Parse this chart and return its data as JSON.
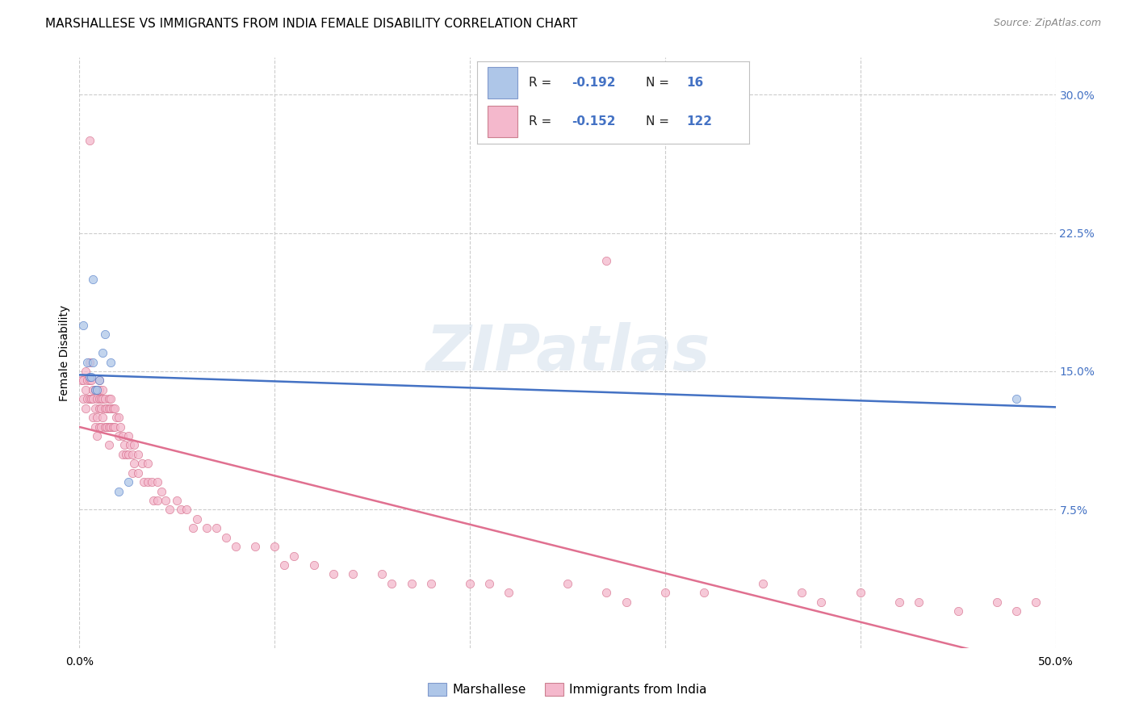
{
  "title": "MARSHALLESE VS IMMIGRANTS FROM INDIA FEMALE DISABILITY CORRELATION CHART",
  "source": "Source: ZipAtlas.com",
  "ylabel": "Female Disability",
  "xlim": [
    0.0,
    0.5
  ],
  "ylim": [
    0.0,
    0.32
  ],
  "yticks": [
    0.075,
    0.15,
    0.225,
    0.3
  ],
  "ytick_labels": [
    "7.5%",
    "15.0%",
    "22.5%",
    "30.0%"
  ],
  "xticks": [
    0.0,
    0.1,
    0.2,
    0.3,
    0.4,
    0.5
  ],
  "xtick_labels": [
    "0.0%",
    "",
    "",
    "",
    "",
    "50.0%"
  ],
  "marshallese_color": "#aec6e8",
  "india_color": "#f4b8cc",
  "line_marshallese_color": "#4472c4",
  "line_india_color": "#e07090",
  "background_color": "#ffffff",
  "grid_color": "#cccccc",
  "marshallese_x": [
    0.002,
    0.004,
    0.005,
    0.006,
    0.007,
    0.007,
    0.008,
    0.009,
    0.01,
    0.012,
    0.013,
    0.016,
    0.02,
    0.025,
    0.48
  ],
  "marshallese_y": [
    0.175,
    0.155,
    0.147,
    0.147,
    0.2,
    0.155,
    0.14,
    0.14,
    0.145,
    0.16,
    0.17,
    0.155,
    0.085,
    0.09,
    0.135
  ],
  "india_x": [
    0.001,
    0.002,
    0.002,
    0.003,
    0.003,
    0.003,
    0.004,
    0.004,
    0.005,
    0.005,
    0.005,
    0.006,
    0.006,
    0.007,
    0.007,
    0.007,
    0.008,
    0.008,
    0.008,
    0.009,
    0.009,
    0.009,
    0.009,
    0.01,
    0.01,
    0.01,
    0.01,
    0.01,
    0.011,
    0.011,
    0.011,
    0.012,
    0.012,
    0.012,
    0.013,
    0.013,
    0.013,
    0.014,
    0.014,
    0.015,
    0.015,
    0.015,
    0.015,
    0.016,
    0.016,
    0.016,
    0.017,
    0.017,
    0.018,
    0.018,
    0.019,
    0.02,
    0.02,
    0.021,
    0.022,
    0.022,
    0.023,
    0.024,
    0.025,
    0.025,
    0.026,
    0.027,
    0.027,
    0.028,
    0.028,
    0.03,
    0.03,
    0.032,
    0.033,
    0.035,
    0.035,
    0.037,
    0.038,
    0.04,
    0.04,
    0.042,
    0.044,
    0.046,
    0.05,
    0.052,
    0.055,
    0.058,
    0.06,
    0.065,
    0.07,
    0.075,
    0.08,
    0.09,
    0.1,
    0.105,
    0.11,
    0.12,
    0.13,
    0.14,
    0.155,
    0.16,
    0.17,
    0.18,
    0.2,
    0.21,
    0.22,
    0.25,
    0.27,
    0.28,
    0.3,
    0.32,
    0.35,
    0.37,
    0.38,
    0.4,
    0.42,
    0.43,
    0.45,
    0.47,
    0.48,
    0.49,
    0.27,
    0.005
  ],
  "india_y": [
    0.145,
    0.145,
    0.135,
    0.15,
    0.14,
    0.13,
    0.145,
    0.135,
    0.155,
    0.145,
    0.135,
    0.145,
    0.135,
    0.14,
    0.135,
    0.125,
    0.14,
    0.13,
    0.12,
    0.14,
    0.135,
    0.125,
    0.115,
    0.145,
    0.14,
    0.135,
    0.13,
    0.12,
    0.135,
    0.13,
    0.12,
    0.14,
    0.135,
    0.125,
    0.135,
    0.13,
    0.12,
    0.13,
    0.12,
    0.135,
    0.13,
    0.12,
    0.11,
    0.135,
    0.13,
    0.12,
    0.13,
    0.12,
    0.13,
    0.12,
    0.125,
    0.125,
    0.115,
    0.12,
    0.115,
    0.105,
    0.11,
    0.105,
    0.115,
    0.105,
    0.11,
    0.105,
    0.095,
    0.11,
    0.1,
    0.105,
    0.095,
    0.1,
    0.09,
    0.1,
    0.09,
    0.09,
    0.08,
    0.09,
    0.08,
    0.085,
    0.08,
    0.075,
    0.08,
    0.075,
    0.075,
    0.065,
    0.07,
    0.065,
    0.065,
    0.06,
    0.055,
    0.055,
    0.055,
    0.045,
    0.05,
    0.045,
    0.04,
    0.04,
    0.04,
    0.035,
    0.035,
    0.035,
    0.035,
    0.035,
    0.03,
    0.035,
    0.03,
    0.025,
    0.03,
    0.03,
    0.035,
    0.03,
    0.025,
    0.03,
    0.025,
    0.025,
    0.02,
    0.025,
    0.02,
    0.025,
    0.21,
    0.275
  ],
  "title_fontsize": 11,
  "axis_label_fontsize": 10,
  "tick_fontsize": 10,
  "marker_size": 55,
  "line_width": 1.8,
  "marker_alpha": 0.75
}
